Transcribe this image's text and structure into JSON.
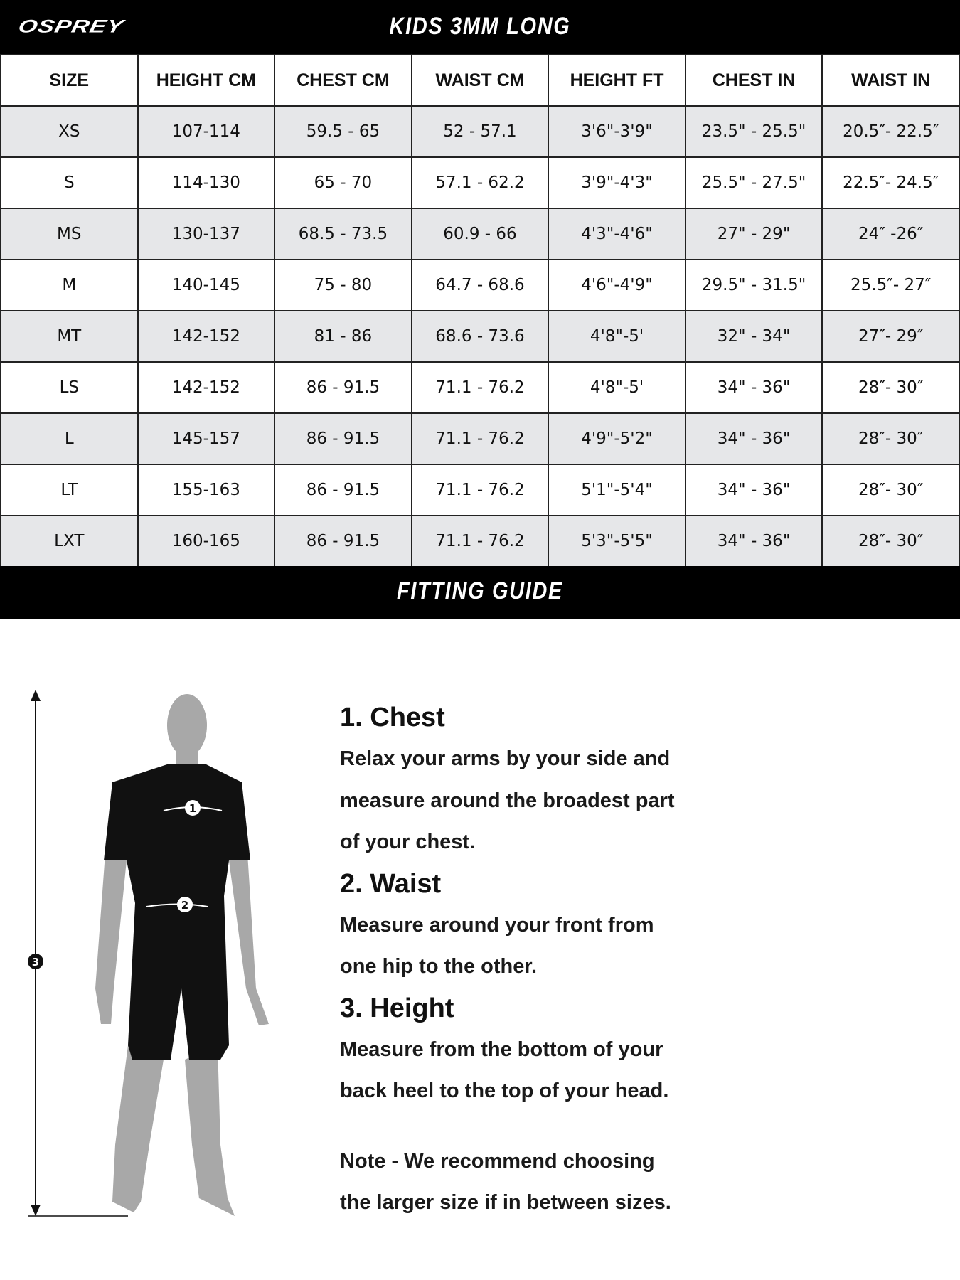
{
  "header": {
    "logo": "OSPREY",
    "title": "KIDS 3MM LONG"
  },
  "table": {
    "columns": [
      "SIZE",
      "HEIGHT CM",
      "CHEST CM",
      "WAIST CM",
      "HEIGHT FT",
      "CHEST IN",
      "WAIST IN"
    ],
    "rows": [
      [
        "XS",
        "107-114",
        "59.5 - 65",
        "52 - 57.1",
        "3'6\"-3'9\"",
        "23.5\" - 25.5\"",
        "20.5″- 22.5″"
      ],
      [
        "S",
        "114-130",
        "65 - 70",
        "57.1 - 62.2",
        "3'9\"-4'3\"",
        "25.5\" - 27.5\"",
        "22.5″- 24.5″"
      ],
      [
        "MS",
        "130-137",
        "68.5 - 73.5",
        "60.9 - 66",
        "4'3\"-4'6\"",
        "27\" - 29\"",
        "24″ -26″"
      ],
      [
        "M",
        "140-145",
        "75 - 80",
        "64.7 - 68.6",
        "4'6\"-4'9\"",
        "29.5\" - 31.5\"",
        "25.5″- 27″"
      ],
      [
        "MT",
        "142-152",
        "81 - 86",
        "68.6 - 73.6",
        "4'8\"-5'",
        "32\" - 34\"",
        "27″- 29″"
      ],
      [
        "LS",
        "142-152",
        "86 - 91.5",
        "71.1 - 76.2",
        "4'8\"-5'",
        "34\" - 36\"",
        "28″- 30″"
      ],
      [
        "L",
        "145-157",
        "86 - 91.5",
        "71.1 - 76.2",
        "4'9\"-5'2\"",
        "34\" - 36\"",
        "28″- 30″"
      ],
      [
        "LT",
        "155-163",
        "86 - 91.5",
        "71.1 - 76.2",
        "5'1\"-5'4\"",
        "34\" - 36\"",
        "28″- 30″"
      ],
      [
        "LXT",
        "160-165",
        "86 - 91.5",
        "71.1 - 76.2",
        "5'3\"-5'5\"",
        "34\" - 36\"",
        "28″- 30″"
      ]
    ]
  },
  "guide": {
    "title": "FITTING GUIDE",
    "figure_markers": [
      "1",
      "2",
      "3"
    ],
    "sections": [
      {
        "heading": "1. Chest",
        "lines": [
          "Relax your arms by your side and",
          "measure around the broadest part",
          "of your chest."
        ]
      },
      {
        "heading": "2. Waist",
        "lines": [
          "Measure around your front from",
          "one hip to the other."
        ]
      },
      {
        "heading": "3. Height",
        "lines": [
          "Measure from the bottom of your",
          "back heel to the top of your head."
        ]
      }
    ],
    "note": [
      "Note - We recommend choosing",
      "the larger size if in between sizes."
    ]
  },
  "colors": {
    "header_bg": "#000000",
    "row_alt": "#e6e7e9",
    "suit": "#111111",
    "skin": "#a8a8a8"
  }
}
